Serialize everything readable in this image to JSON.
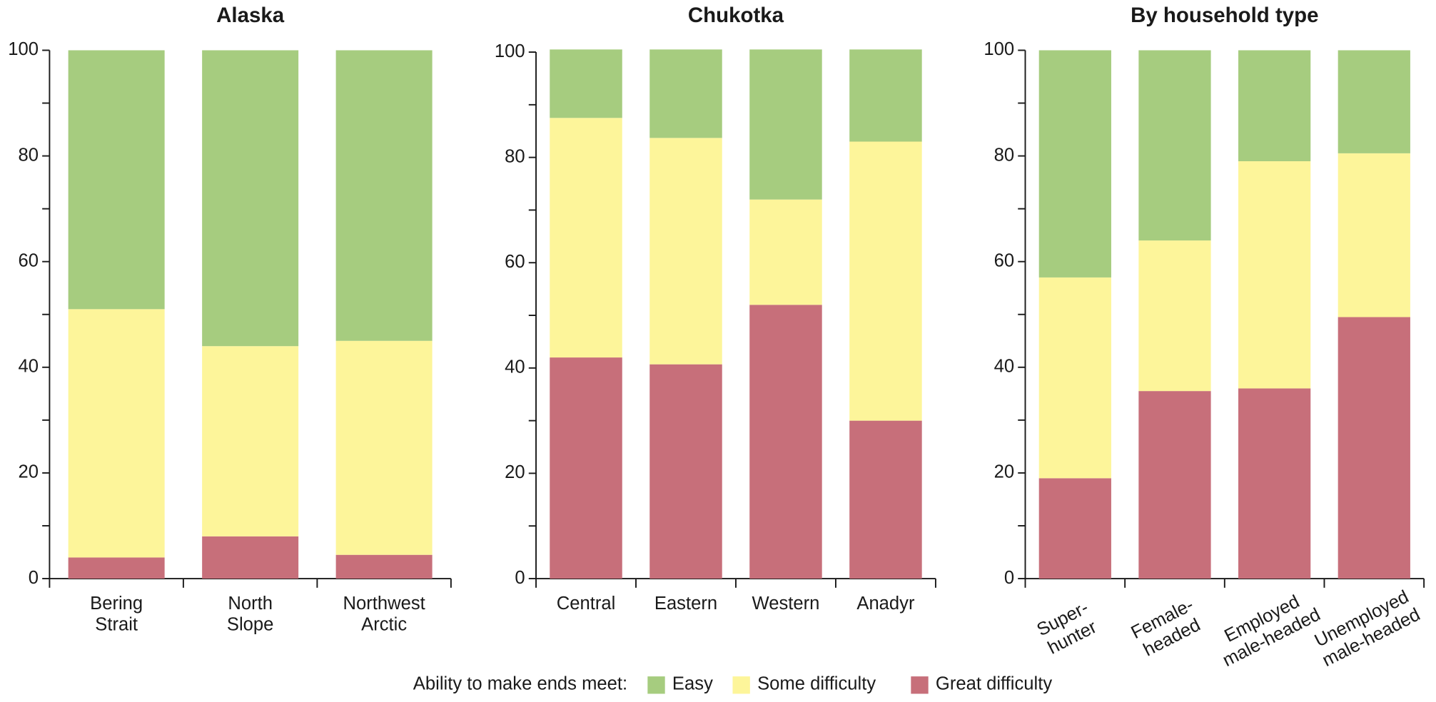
{
  "chart_data": [
    {
      "type": "stacked_bar",
      "title": "Alaska",
      "categories": [
        "Bering Strait",
        "North Slope",
        "Northwest Arctic"
      ],
      "series": [
        {
          "name": "Easy",
          "color": "#a6cc7f",
          "values": [
            49,
            56,
            55
          ]
        },
        {
          "name": "Some difficulty",
          "color": "#fdf59a",
          "values": [
            47,
            36,
            40.5
          ]
        },
        {
          "name": "Great difficulty",
          "color": "#c76f7a",
          "values": [
            4,
            8,
            4.5
          ]
        }
      ],
      "ylim": [
        0,
        100
      ],
      "yticks": [
        0,
        20,
        40,
        60,
        80,
        100
      ],
      "yminor_ticks": [
        10,
        30,
        50,
        70,
        90
      ]
    },
    {
      "type": "stacked_bar",
      "title": "Chukotka",
      "categories": [
        "Central",
        "Eastern",
        "Western",
        "Anadyr"
      ],
      "series": [
        {
          "values": [
            13,
            16.8,
            28.5,
            17.5
          ]
        },
        {
          "values": [
            45.5,
            43,
            20,
            53
          ]
        },
        {
          "values": [
            42,
            40.7,
            52,
            30
          ]
        }
      ],
      "ylim": [
        0,
        100
      ],
      "yticks": [
        0,
        20,
        40,
        60,
        80,
        100
      ],
      "yminor_ticks": [
        10,
        30,
        50,
        70,
        90
      ]
    },
    {
      "type": "stacked_bar",
      "title": "By household type",
      "categories": [
        "Super-hunter",
        "Female-headed",
        "Employed male-headed",
        "Unemployed male-headed"
      ],
      "series": [
        {
          "values": [
            43,
            36,
            21,
            19.5
          ]
        },
        {
          "values": [
            38,
            28.5,
            43,
            31
          ]
        },
        {
          "values": [
            19,
            35.5,
            36,
            49.5
          ]
        }
      ],
      "ylim": [
        0,
        100
      ],
      "yticks": [
        0,
        20,
        40,
        60,
        80,
        100
      ],
      "yminor_ticks": [
        10,
        30,
        50,
        70,
        90
      ]
    }
  ],
  "legend": {
    "title": "Ability to make ends meet:"
  }
}
